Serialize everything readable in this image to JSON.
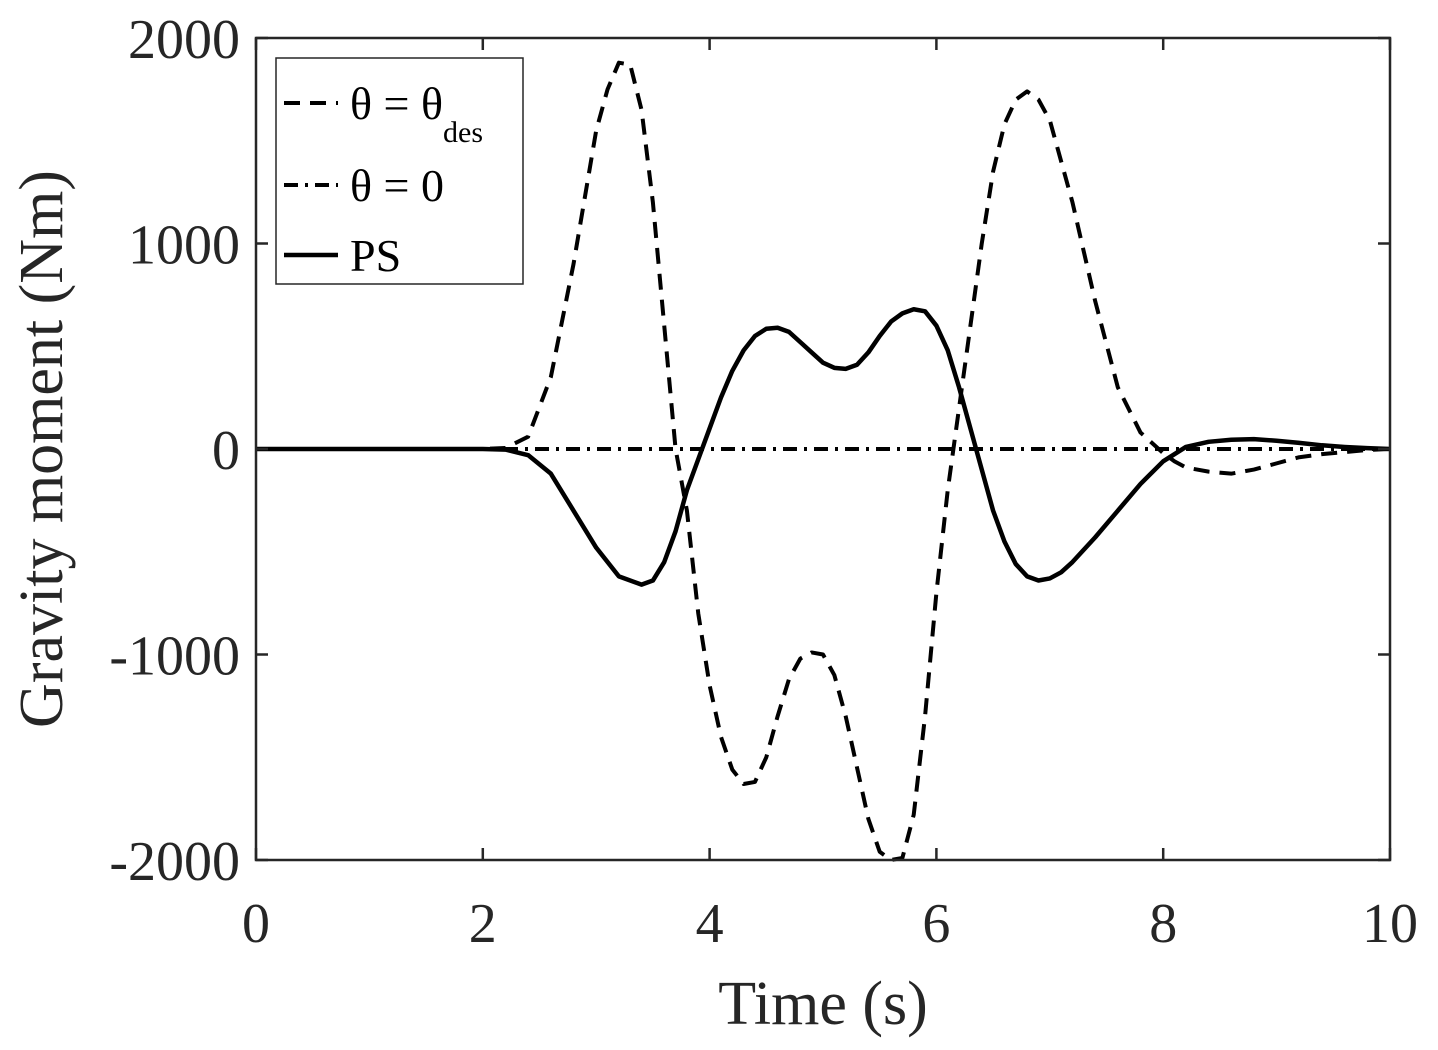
{
  "chart_data": {
    "type": "line",
    "xlabel": "Time (s)",
    "ylabel": "Gravity moment (Nm)",
    "xlim": [
      0,
      10
    ],
    "ylim": [
      -2000,
      2000
    ],
    "xticks": [
      "0",
      "2",
      "4",
      "6",
      "8",
      "10"
    ],
    "yticks": [
      "-2000",
      "-1000",
      "0",
      "1000",
      "2000"
    ],
    "grid": false,
    "legend_position": "top-left",
    "series": [
      {
        "name": "θ = θdes",
        "legend": {
          "main": "θ = θ",
          "sub": "des"
        },
        "style": "dashed",
        "color": "#000000",
        "x": [
          0,
          1,
          2,
          2.2,
          2.4,
          2.6,
          2.8,
          3.0,
          3.1,
          3.2,
          3.3,
          3.4,
          3.5,
          3.6,
          3.7,
          3.8,
          3.9,
          4.0,
          4.1,
          4.2,
          4.3,
          4.4,
          4.5,
          4.6,
          4.7,
          4.8,
          4.9,
          5.0,
          5.1,
          5.2,
          5.3,
          5.4,
          5.5,
          5.6,
          5.7,
          5.8,
          5.9,
          6.0,
          6.1,
          6.2,
          6.3,
          6.4,
          6.5,
          6.6,
          6.7,
          6.8,
          6.9,
          7.0,
          7.2,
          7.4,
          7.6,
          7.8,
          8.0,
          8.1,
          8.2,
          8.4,
          8.6,
          8.8,
          9.0,
          9.2,
          9.4,
          9.6,
          9.8,
          10
        ],
        "y": [
          0,
          0,
          0,
          5,
          60,
          350,
          900,
          1550,
          1750,
          1880,
          1870,
          1650,
          1200,
          600,
          0,
          -300,
          -800,
          -1150,
          -1400,
          -1560,
          -1630,
          -1620,
          -1500,
          -1300,
          -1120,
          -1020,
          -990,
          -1000,
          -1100,
          -1300,
          -1550,
          -1800,
          -1960,
          -2000,
          -1990,
          -1780,
          -1300,
          -700,
          -200,
          200,
          600,
          1000,
          1350,
          1580,
          1700,
          1740,
          1700,
          1600,
          1200,
          720,
          300,
          80,
          -20,
          -60,
          -90,
          -110,
          -120,
          -100,
          -70,
          -40,
          -25,
          -15,
          -5,
          0
        ]
      },
      {
        "name": "θ = 0",
        "legend": {
          "main": "θ = 0",
          "sub": ""
        },
        "style": "dashdot",
        "color": "#000000",
        "x": [
          0,
          10
        ],
        "y": [
          0,
          0
        ]
      },
      {
        "name": "PS",
        "legend": {
          "main": "PS",
          "sub": ""
        },
        "style": "solid",
        "color": "#000000",
        "x": [
          0,
          1,
          2,
          2.2,
          2.4,
          2.6,
          2.8,
          3.0,
          3.2,
          3.4,
          3.5,
          3.6,
          3.7,
          3.8,
          3.9,
          4.0,
          4.1,
          4.2,
          4.3,
          4.4,
          4.5,
          4.6,
          4.7,
          4.8,
          4.9,
          5.0,
          5.1,
          5.2,
          5.3,
          5.4,
          5.5,
          5.6,
          5.7,
          5.8,
          5.9,
          6.0,
          6.1,
          6.2,
          6.3,
          6.4,
          6.5,
          6.6,
          6.7,
          6.8,
          6.9,
          7.0,
          7.1,
          7.2,
          7.4,
          7.6,
          7.8,
          8.0,
          8.2,
          8.4,
          8.6,
          8.8,
          9.0,
          9.2,
          9.4,
          9.6,
          9.8,
          10
        ],
        "y": [
          0,
          0,
          0,
          -3,
          -30,
          -120,
          -300,
          -480,
          -620,
          -660,
          -640,
          -550,
          -400,
          -200,
          -50,
          100,
          250,
          380,
          480,
          550,
          585,
          590,
          570,
          520,
          470,
          420,
          395,
          390,
          410,
          470,
          550,
          620,
          660,
          680,
          670,
          600,
          480,
          300,
          100,
          -100,
          -300,
          -450,
          -560,
          -620,
          -640,
          -630,
          -600,
          -550,
          -430,
          -300,
          -170,
          -60,
          10,
          35,
          45,
          48,
          40,
          30,
          18,
          10,
          4,
          0
        ]
      }
    ]
  }
}
